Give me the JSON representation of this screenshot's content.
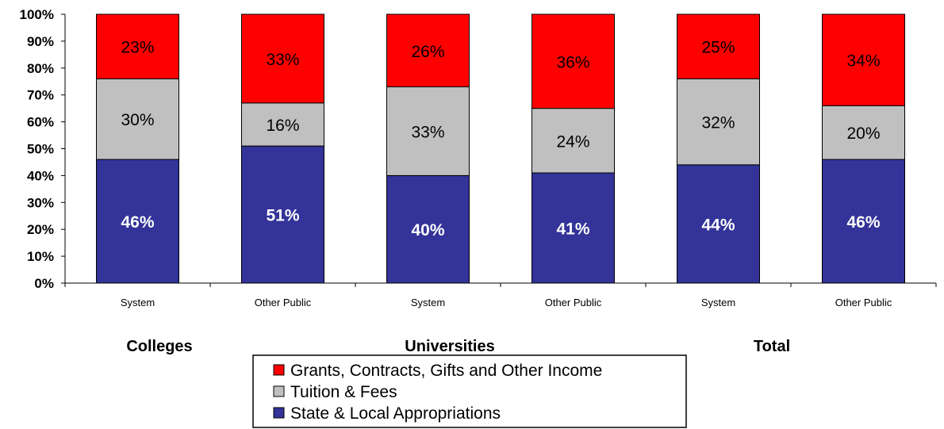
{
  "chart_data": {
    "type": "bar",
    "stacked": true,
    "categories": [
      "System",
      "Other Public",
      "System",
      "Other Public",
      "System",
      "Other Public"
    ],
    "groups": [
      "Colleges",
      "Universities",
      "Total"
    ],
    "ylim": [
      0,
      100
    ],
    "yticks": [
      "0%",
      "10%",
      "20%",
      "30%",
      "40%",
      "50%",
      "60%",
      "70%",
      "80%",
      "90%",
      "100%"
    ],
    "series": [
      {
        "name": "State & Local Appropriations",
        "color": "#333399",
        "values": [
          46,
          51,
          40,
          41,
          44,
          46
        ],
        "labels": [
          "46%",
          "51%",
          "40%",
          "41%",
          "44%",
          "46%"
        ]
      },
      {
        "name": "Tuition & Fees",
        "color": "#c0c0c0",
        "values": [
          30,
          16,
          33,
          24,
          32,
          20
        ],
        "labels": [
          "30%",
          "16%",
          "33%",
          "24%",
          "32%",
          "20%"
        ]
      },
      {
        "name": "Grants, Contracts, Gifts and Other Income",
        "color": "#ff0000",
        "values": [
          23,
          33,
          26,
          36,
          25,
          34
        ],
        "labels": [
          "23%",
          "33%",
          "26%",
          "36%",
          "25%",
          "34%"
        ]
      }
    ],
    "legend": {
      "position": "bottom",
      "order": [
        "Grants, Contracts, Gifts and Other Income",
        "Tuition & Fees",
        "State & Local Appropriations"
      ]
    },
    "grid": false
  }
}
